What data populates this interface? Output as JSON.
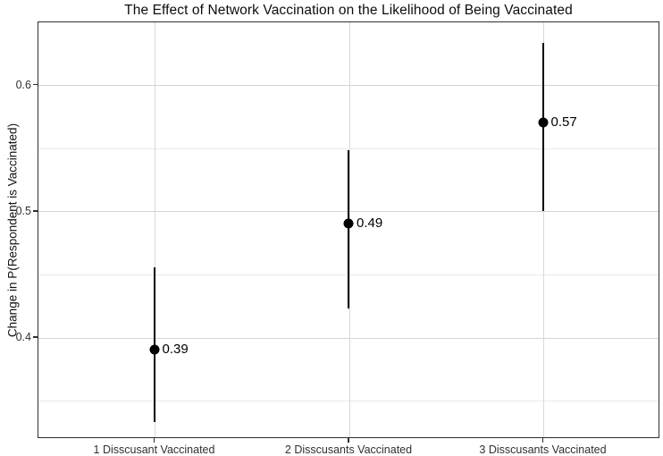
{
  "chart_data": {
    "type": "pointrange",
    "title": "The Effect of Network Vaccination on the Likelihood of Being Vaccinated",
    "xlabel": "",
    "ylabel": "Change in P(Respondent is Vaccinated)",
    "categories": [
      "1 Disscusant Vaccinated",
      "2 Disscusants Vaccinated",
      "3 Disscusants Vaccinated"
    ],
    "points": [
      {
        "category": "1 Disscusant Vaccinated",
        "value": 0.39,
        "label": "0.39",
        "ci_low": 0.333,
        "ci_high": 0.455
      },
      {
        "category": "2 Disscusants Vaccinated",
        "value": 0.49,
        "label": "0.49",
        "ci_low": 0.423,
        "ci_high": 0.548
      },
      {
        "category": "3 Disscusants Vaccinated",
        "value": 0.57,
        "label": "0.57",
        "ci_low": 0.5,
        "ci_high": 0.633
      }
    ],
    "ylim": [
      0.32,
      0.65
    ],
    "y_major_ticks": [
      0.4,
      0.5,
      0.6
    ],
    "y_tick_labels": [
      "0.4",
      "0.5",
      "0.6"
    ],
    "y_minor_gridlines": [
      0.35,
      0.45,
      0.55
    ],
    "legend": "none",
    "grid": "horizontal major+minor solid light gray; one vertical gridline per category; full panel border",
    "colors": {
      "point": "#000000",
      "error_bar": "#000000",
      "grid_major": "#d5d5d5",
      "grid_minor": "#e9e9e9",
      "panel_border": "#2e2e2e",
      "background": "#ffffff",
      "title_text": "#0d0d0d",
      "axis_text": "#303030"
    }
  }
}
